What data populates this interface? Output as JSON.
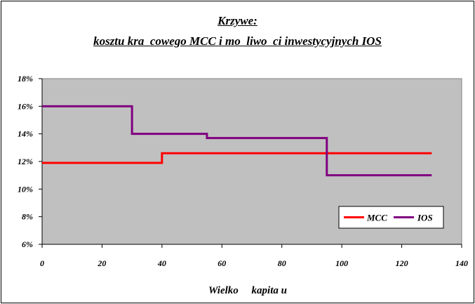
{
  "chart_data": {
    "type": "line",
    "title_line1": "Krzywe:",
    "title_line2": "kosztu kra  cowego MCC i mo  liwo  ci inwestycyjnych IOS",
    "xlabel": "Wielko     kapita u",
    "ylabel": "",
    "xlim": [
      0,
      140
    ],
    "ylim": [
      6,
      18
    ],
    "x_ticks": [
      "0",
      "20",
      "40",
      "60",
      "80",
      "100",
      "120",
      "140"
    ],
    "y_ticks": [
      "6%",
      "8%",
      "10%",
      "12%",
      "14%",
      "16%",
      "18%"
    ],
    "grid": false,
    "legend_position": "bottom-right",
    "plot_background": "#c0c0c0",
    "series": [
      {
        "name": "MCC",
        "color": "#ff0000",
        "x": [
          0,
          40,
          40,
          130
        ],
        "y": [
          11.9,
          11.9,
          12.6,
          12.6
        ]
      },
      {
        "name": "IOS",
        "color": "#800080",
        "x": [
          0,
          30,
          30,
          55,
          55,
          95,
          95,
          130
        ],
        "y": [
          16,
          16,
          14,
          14,
          13.7,
          13.7,
          11,
          11
        ]
      }
    ]
  }
}
